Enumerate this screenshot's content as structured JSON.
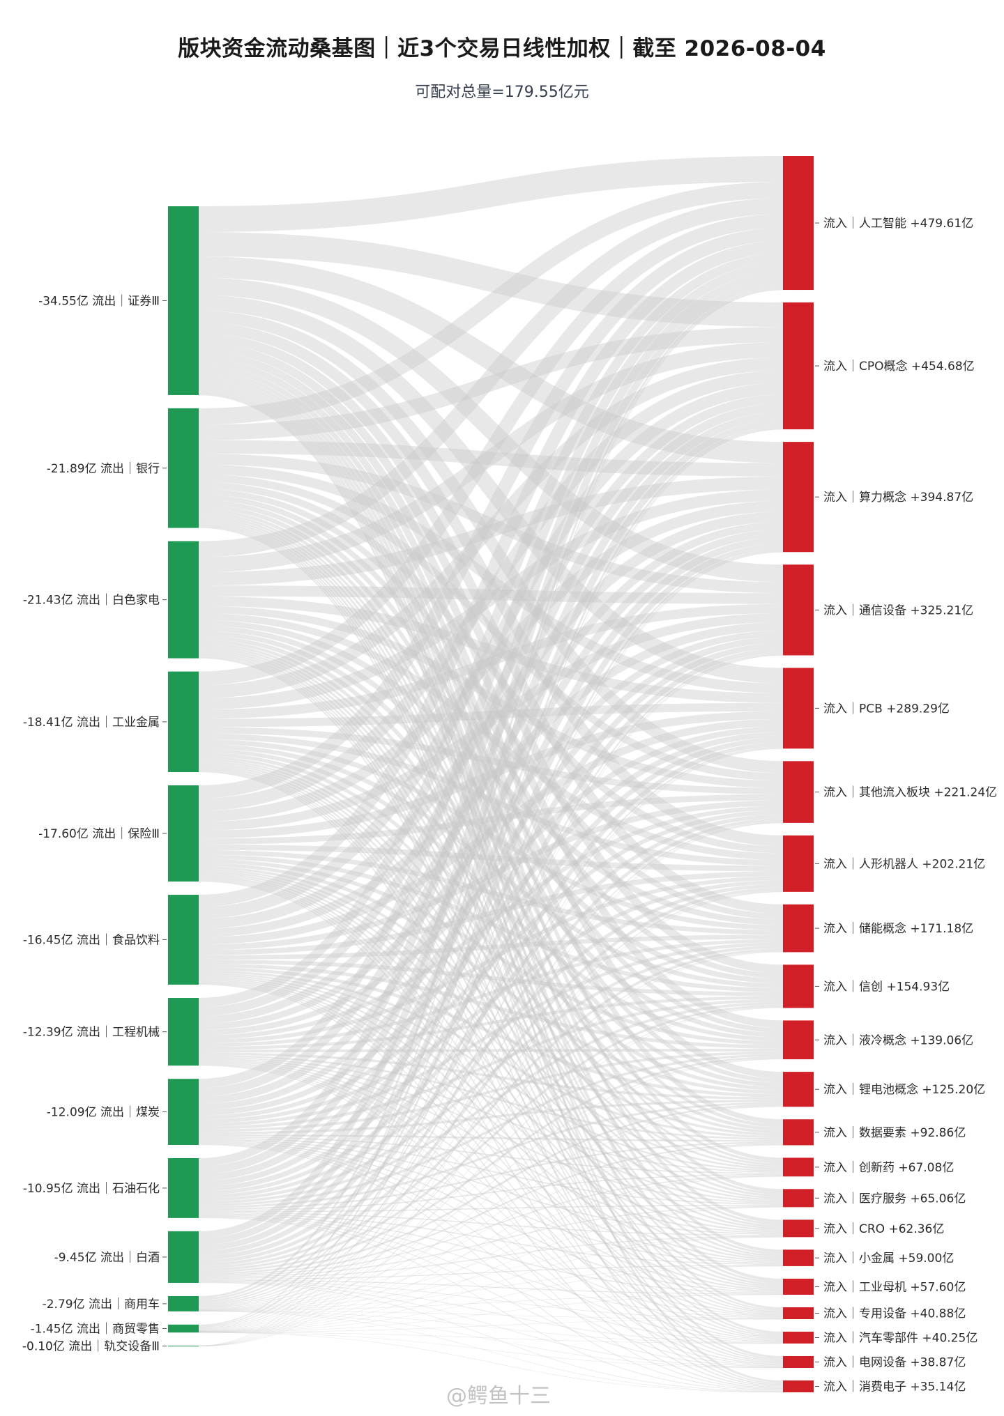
{
  "chart_data": {
    "type": "sankey",
    "title": "版块资金流动桑基图｜近3个交易日线性加权｜截至 2026-08-04",
    "subtitle": "可配对总量=179.55亿元",
    "colors": {
      "outflow": "#1f9a55",
      "inflow": "#d11f28",
      "link": "#c8c8c8"
    },
    "sources": [
      {
        "label": "-34.55亿 流出｜证券Ⅲ",
        "value": -34.55
      },
      {
        "label": "-21.89亿 流出｜银行",
        "value": -21.89
      },
      {
        "label": "-21.43亿 流出｜白色家电",
        "value": -21.43
      },
      {
        "label": "-18.41亿 流出｜工业金属",
        "value": -18.41
      },
      {
        "label": "-17.60亿 流出｜保险Ⅲ",
        "value": -17.6
      },
      {
        "label": "-16.45亿 流出｜食品饮料",
        "value": -16.45
      },
      {
        "label": "-12.39亿 流出｜工程机械",
        "value": -12.39
      },
      {
        "label": "-12.09亿 流出｜煤炭",
        "value": -12.09
      },
      {
        "label": "-10.95亿 流出｜石油石化",
        "value": -10.95
      },
      {
        "label": "-9.45亿 流出｜白酒",
        "value": -9.45
      },
      {
        "label": "-2.79亿 流出｜商用车",
        "value": -2.79
      },
      {
        "label": "-1.45亿 流出｜商贸零售",
        "value": -1.45
      },
      {
        "label": "-0.10亿 流出｜轨交设备Ⅲ",
        "value": -0.1
      }
    ],
    "targets": [
      {
        "label": "流入｜人工智能 +479.61亿",
        "value": 479.61
      },
      {
        "label": "流入｜CPO概念 +454.68亿",
        "value": 454.68
      },
      {
        "label": "流入｜算力概念 +394.87亿",
        "value": 394.87
      },
      {
        "label": "流入｜通信设备 +325.21亿",
        "value": 325.21
      },
      {
        "label": "流入｜PCB +289.29亿",
        "value": 289.29
      },
      {
        "label": "流入｜其他流入板块 +221.24亿",
        "value": 221.24
      },
      {
        "label": "流入｜人形机器人 +202.21亿",
        "value": 202.21
      },
      {
        "label": "流入｜储能概念 +171.18亿",
        "value": 171.18
      },
      {
        "label": "流入｜信创 +154.93亿",
        "value": 154.93
      },
      {
        "label": "流入｜液冷概念 +139.06亿",
        "value": 139.06
      },
      {
        "label": "流入｜锂电池概念 +125.20亿",
        "value": 125.2
      },
      {
        "label": "流入｜数据要素 +92.86亿",
        "value": 92.86
      },
      {
        "label": "流入｜创新药 +67.08亿",
        "value": 67.08
      },
      {
        "label": "流入｜医疗服务 +65.06亿",
        "value": 65.06
      },
      {
        "label": "流入｜CRO +62.36亿",
        "value": 62.36
      },
      {
        "label": "流入｜小金属 +59.00亿",
        "value": 59.0
      },
      {
        "label": "流入｜工业母机 +57.60亿",
        "value": 57.6
      },
      {
        "label": "流入｜专用设备 +40.88亿",
        "value": 40.88
      },
      {
        "label": "流入｜汽车零部件 +40.25亿",
        "value": 40.25
      },
      {
        "label": "流入｜电网设备 +38.87亿",
        "value": 38.87
      },
      {
        "label": "流入｜消费电子 +35.14亿",
        "value": 35.14
      }
    ]
  },
  "watermark": "@鳄鱼十三"
}
